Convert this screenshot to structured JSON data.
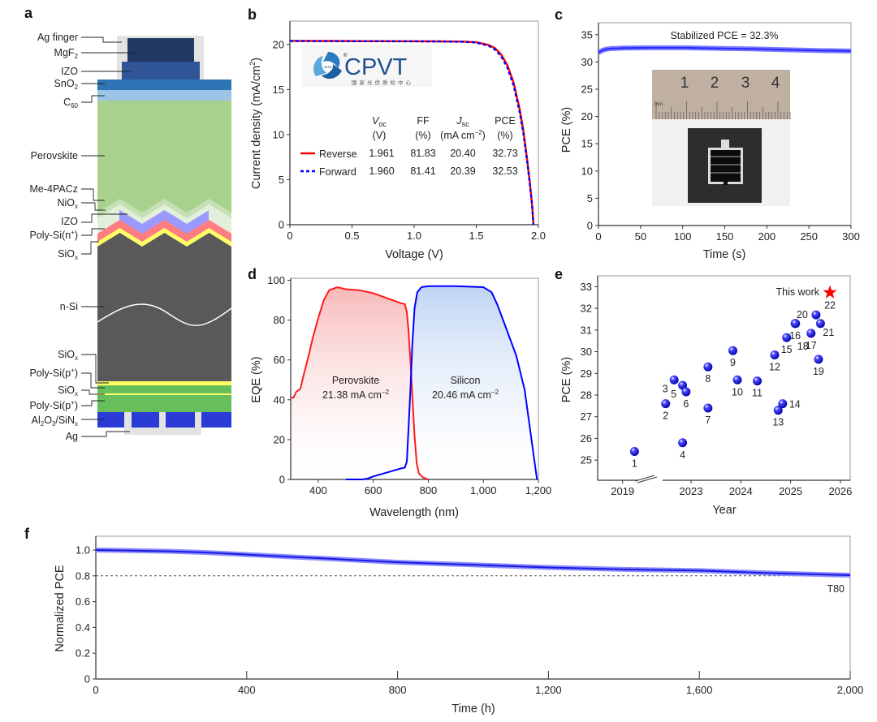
{
  "panels": {
    "a": "a",
    "b": "b",
    "c": "c",
    "d": "d",
    "e": "e",
    "f": "f"
  },
  "structure": {
    "labels": [
      {
        "parts": [
          {
            "t": "Ag finger"
          }
        ]
      },
      {
        "parts": [
          {
            "t": "MgF"
          },
          {
            "sub": "2"
          }
        ]
      },
      {
        "parts": [
          {
            "t": "IZO"
          }
        ]
      },
      {
        "parts": [
          {
            "t": "SnO"
          },
          {
            "sub": "2"
          }
        ]
      },
      {
        "parts": [
          {
            "t": "C"
          },
          {
            "sub": "60"
          }
        ]
      },
      {
        "parts": [
          {
            "t": "Perovskite"
          }
        ]
      },
      {
        "parts": [
          {
            "t": "Me-4PACz"
          }
        ]
      },
      {
        "parts": [
          {
            "t": "NiO"
          },
          {
            "sub": "x"
          }
        ]
      },
      {
        "parts": [
          {
            "t": "IZO"
          }
        ]
      },
      {
        "parts": [
          {
            "t": "Poly-Si(n"
          },
          {
            "sup": "+"
          },
          {
            "t": ")"
          }
        ]
      },
      {
        "parts": [
          {
            "t": "SiO"
          },
          {
            "sub": "x"
          }
        ]
      },
      {
        "parts": [
          {
            "t": "n-Si"
          }
        ]
      },
      {
        "parts": [
          {
            "t": "SiO"
          },
          {
            "sub": "x"
          }
        ]
      },
      {
        "parts": [
          {
            "t": "Poly-Si(p"
          },
          {
            "sup": "+"
          },
          {
            "t": ")"
          }
        ]
      },
      {
        "parts": [
          {
            "t": "SiO"
          },
          {
            "sub": "x"
          }
        ]
      },
      {
        "parts": [
          {
            "t": "Poly-Si(p"
          },
          {
            "sup": "+"
          },
          {
            "t": ")"
          }
        ]
      },
      {
        "parts": [
          {
            "t": "Al"
          },
          {
            "sub": "2"
          },
          {
            "t": "O"
          },
          {
            "sub": "3"
          },
          {
            "t": "/SiN"
          },
          {
            "sub": "x"
          }
        ]
      },
      {
        "parts": [
          {
            "t": "Ag"
          }
        ]
      }
    ],
    "colors": {
      "ag": "#e3e3e3",
      "mgf2": "#223a63",
      "izo_top": "#2f5597",
      "sno2": "#2e75b6",
      "c60": "#9dc3e6",
      "perovskite": "#a9d18e",
      "me4pacz": "#c5e0b4",
      "niox": "#e2efda",
      "izo": "#9999ff",
      "polysi_n": "#ff7c80",
      "siox": "#ffff66",
      "nsi": "#595959",
      "polysi_p": "#66bf5a",
      "al2o3": "#2b3bd6"
    }
  },
  "chart_data": [
    {
      "id": "b",
      "type": "line",
      "xlabel": "Voltage (V)",
      "ylabel": "Current density (mA/cm",
      "ylabel_sup": "2",
      "ylabel_tail": ")",
      "xlim": [
        0,
        2.0
      ],
      "ylim": [
        0,
        22.6
      ],
      "xticks": [
        0,
        0.5,
        1.0,
        1.5,
        2.0
      ],
      "xtick_labels": [
        "0",
        "0.5",
        "1.0",
        "1.5",
        "2.0"
      ],
      "yticks": [
        0,
        5,
        10,
        15,
        20
      ],
      "ytick_labels": [
        "0",
        "5",
        "10",
        "15",
        "20"
      ],
      "logo": {
        "text": "CPVT",
        "subtitle": "国家光伏质检中心",
        "badge": "NITE",
        "reg": "®"
      },
      "table": {
        "headers": [
          {
            "name": "V",
            "sub": "oc",
            "unit": "(V)"
          },
          {
            "name": "FF",
            "sub": "",
            "unit": "(%)"
          },
          {
            "name": "J",
            "sub": "sc",
            "unit": "(mA cm",
            "unit_sup": "−2",
            "unit_tail": ")"
          },
          {
            "name": "PCE",
            "sub": "",
            "unit": "(%)"
          }
        ],
        "rows": [
          {
            "label": "Reverse",
            "values": [
              "1.961",
              "81.83",
              "20.40",
              "32.73"
            ]
          },
          {
            "label": "Forward",
            "values": [
              "1.960",
              "81.41",
              "20.39",
              "32.53"
            ]
          }
        ]
      },
      "series": [
        {
          "name": "Reverse",
          "color": "#ff0000",
          "style": "solid",
          "x": [
            0,
            0.3,
            0.6,
            0.9,
            1.2,
            1.4,
            1.5,
            1.6,
            1.65,
            1.7,
            1.75,
            1.8,
            1.85,
            1.88,
            1.91,
            1.93,
            1.95,
            1.961
          ],
          "y": [
            20.4,
            20.39,
            20.38,
            20.37,
            20.35,
            20.32,
            20.25,
            19.95,
            19.6,
            18.9,
            17.7,
            15.8,
            12.8,
            10.4,
            7.2,
            4.8,
            2.2,
            0
          ]
        },
        {
          "name": "Forward",
          "color": "#0000ff",
          "style": "dashed",
          "x": [
            0,
            0.3,
            0.6,
            0.9,
            1.2,
            1.4,
            1.5,
            1.6,
            1.65,
            1.7,
            1.75,
            1.8,
            1.85,
            1.88,
            1.91,
            1.93,
            1.95,
            1.96
          ],
          "y": [
            20.39,
            20.38,
            20.37,
            20.36,
            20.34,
            20.3,
            20.22,
            19.85,
            19.45,
            18.7,
            17.45,
            15.5,
            12.5,
            10.1,
            7.0,
            4.7,
            2.1,
            0
          ]
        }
      ]
    },
    {
      "id": "c",
      "type": "line",
      "xlabel": "Time (s)",
      "ylabel": "PCE (%)",
      "annotation": "Stabilized PCE = 32.3%",
      "xlim": [
        0,
        300
      ],
      "ylim": [
        0,
        37.2
      ],
      "xticks": [
        0,
        50,
        100,
        150,
        200,
        250,
        300
      ],
      "xtick_labels": [
        "0",
        "50",
        "100",
        "150",
        "200",
        "250",
        "300"
      ],
      "yticks": [
        0,
        5,
        10,
        15,
        20,
        25,
        30,
        35
      ],
      "ytick_labels": [
        "0",
        "5",
        "10",
        "15",
        "20",
        "25",
        "30",
        "35"
      ],
      "inset": {
        "ruler_numbers": [
          "1",
          "2",
          "3",
          "4"
        ],
        "ruler_unit": "mm"
      },
      "series": [
        {
          "name": "PCE",
          "color": "#2a2aff",
          "x": [
            0,
            3,
            8,
            15,
            30,
            60,
            100,
            140,
            180,
            220,
            260,
            300
          ],
          "y": [
            31.7,
            32.0,
            32.3,
            32.45,
            32.55,
            32.6,
            32.6,
            32.5,
            32.4,
            32.25,
            32.1,
            32.0
          ]
        }
      ]
    },
    {
      "id": "d",
      "type": "area",
      "xlabel": "Wavelength (nm)",
      "ylabel": "EQE (%)",
      "xlim": [
        300,
        1200
      ],
      "ylim": [
        0,
        101
      ],
      "xticks": [
        400,
        600,
        800,
        1000,
        1200
      ],
      "xtick_labels": [
        "400",
        "600",
        "800",
        "1,000",
        "1,200"
      ],
      "yticks": [
        0,
        20,
        40,
        60,
        80,
        100
      ],
      "ytick_labels": [
        "0",
        "20",
        "40",
        "60",
        "80",
        "100"
      ],
      "series": [
        {
          "name": "Perovskite",
          "value_label": "21.38 mA cm",
          "value_sup": "−2",
          "color": "#ff1a1a",
          "fill": "#f8b8b8",
          "x": [
            300,
            310,
            320,
            335,
            350,
            365,
            380,
            400,
            420,
            440,
            470,
            500,
            550,
            600,
            650,
            700,
            715,
            722,
            728,
            735,
            742,
            750,
            758,
            766,
            780,
            800
          ],
          "y": [
            41,
            41,
            44,
            45.5,
            54,
            62,
            71,
            81,
            90,
            95,
            96.5,
            95.5,
            95,
            93.5,
            91,
            88.5,
            88,
            84,
            75,
            60,
            42,
            22,
            8,
            3,
            1,
            0
          ]
        },
        {
          "name": "Silicon",
          "value_label": "20.46 mA cm",
          "value_sup": "−2",
          "color": "#0000ff",
          "fill": "#c2d6f4",
          "x": [
            500,
            560,
            580,
            600,
            650,
            700,
            715,
            722,
            728,
            735,
            742,
            750,
            760,
            775,
            800,
            900,
            1000,
            1030,
            1050,
            1080,
            1120,
            1150,
            1180,
            1195
          ],
          "y": [
            0,
            0,
            0.5,
            1.5,
            3.5,
            5.5,
            6,
            9,
            25,
            45,
            68,
            86,
            94,
            96.5,
            97,
            97,
            96.5,
            94,
            88,
            77,
            62,
            45,
            15,
            0
          ]
        }
      ]
    },
    {
      "id": "e",
      "type": "scatter",
      "xlabel": "Year",
      "ylabel": "PCE (%)",
      "xlim": [
        2018.7,
        2026.2
      ],
      "axis_break": [
        2019.6,
        2022.0
      ],
      "ylim": [
        24.07,
        33.5
      ],
      "xticks": [
        2019,
        2023,
        2024,
        2025,
        2026
      ],
      "xtick_labels": [
        "2019",
        "2023",
        "2024",
        "2025",
        "2026"
      ],
      "yticks": [
        25,
        26,
        27,
        28,
        29,
        30,
        31,
        32,
        33
      ],
      "ytick_labels": [
        "25",
        "26",
        "27",
        "28",
        "29",
        "30",
        "31",
        "32",
        "33"
      ],
      "highlight_label": "This work",
      "points": [
        {
          "label": "1",
          "x": 2019.24,
          "y": 25.4,
          "pos": "below"
        },
        {
          "label": "2",
          "x": 2022.49,
          "y": 27.6,
          "pos": "below"
        },
        {
          "label": "3",
          "x": 2022.66,
          "y": 28.7,
          "pos": "below-left"
        },
        {
          "label": "4",
          "x": 2022.83,
          "y": 25.8,
          "pos": "below"
        },
        {
          "label": "5",
          "x": 2022.83,
          "y": 28.45,
          "pos": "below-left"
        },
        {
          "label": "6",
          "x": 2022.9,
          "y": 28.15,
          "pos": "below"
        },
        {
          "label": "7",
          "x": 2023.34,
          "y": 27.4,
          "pos": "below"
        },
        {
          "label": "8",
          "x": 2023.34,
          "y": 29.3,
          "pos": "below"
        },
        {
          "label": "9",
          "x": 2023.84,
          "y": 30.05,
          "pos": "below"
        },
        {
          "label": "10",
          "x": 2023.93,
          "y": 28.7,
          "pos": "below"
        },
        {
          "label": "11",
          "x": 2024.33,
          "y": 28.65,
          "pos": "below"
        },
        {
          "label": "12",
          "x": 2024.68,
          "y": 29.85,
          "pos": "below"
        },
        {
          "label": "13",
          "x": 2024.75,
          "y": 27.3,
          "pos": "below"
        },
        {
          "label": "14",
          "x": 2024.84,
          "y": 27.6,
          "pos": "right"
        },
        {
          "label": "15",
          "x": 2024.92,
          "y": 30.65,
          "pos": "below"
        },
        {
          "label": "16",
          "x": 2025.09,
          "y": 31.3,
          "pos": "below"
        },
        {
          "label": "18",
          "x": 2025.1,
          "y": 31.3,
          "pos": "below2"
        },
        {
          "label": "17",
          "x": 2025.41,
          "y": 30.85,
          "pos": "below"
        },
        {
          "label": "19",
          "x": 2025.56,
          "y": 29.65,
          "pos": "below"
        },
        {
          "label": "20",
          "x": 2025.51,
          "y": 31.7,
          "pos": "left"
        },
        {
          "label": "21",
          "x": 2025.6,
          "y": 31.3,
          "pos": "below-right"
        }
      ],
      "highlight": {
        "label": "22",
        "x": 2025.79,
        "y": 32.73,
        "color": "#ff0000",
        "marker": "star"
      },
      "marker_color": "#1a1aff"
    },
    {
      "id": "f",
      "type": "line",
      "xlabel": "Time (h)",
      "ylabel": "Normalized PCE",
      "xlim": [
        0,
        2000
      ],
      "ylim": [
        0,
        1.107
      ],
      "xticks": [
        0,
        400,
        800,
        1200,
        1600,
        2000
      ],
      "xtick_labels": [
        "0",
        "400",
        "800",
        "1,200",
        "1,600",
        "2,000"
      ],
      "yticks": [
        0,
        0.2,
        0.4,
        0.6,
        0.8,
        1.0
      ],
      "ytick_labels": [
        "0",
        "0.2",
        "0.4",
        "0.6",
        "0.8",
        "1.0"
      ],
      "reference": {
        "y": 0.8,
        "label": "T80",
        "style": "dashed"
      },
      "series": [
        {
          "name": "Normalized PCE",
          "color": "#2a2aff",
          "x": [
            0,
            100,
            200,
            300,
            400,
            500,
            600,
            800,
            1000,
            1200,
            1400,
            1600,
            1800,
            2000
          ],
          "y": [
            1.0,
            0.995,
            0.99,
            0.98,
            0.965,
            0.95,
            0.935,
            0.905,
            0.885,
            0.865,
            0.85,
            0.84,
            0.82,
            0.805
          ]
        }
      ]
    }
  ]
}
